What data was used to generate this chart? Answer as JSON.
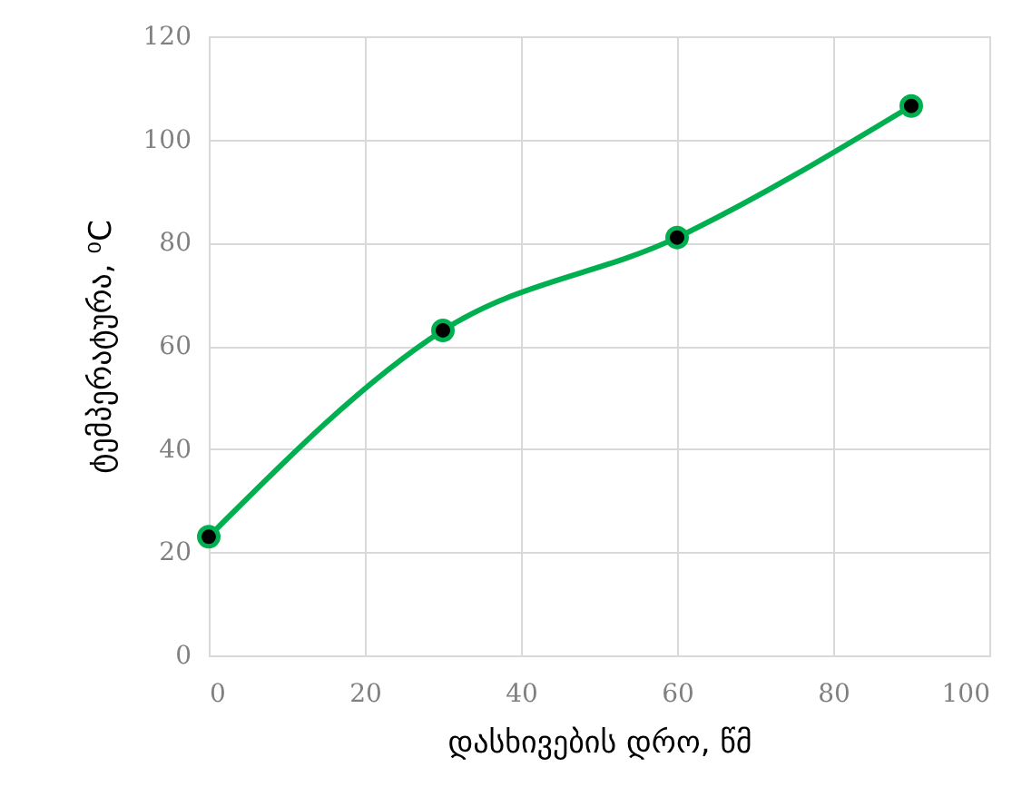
{
  "chart_data": {
    "type": "line",
    "xlabel": "დასხივების დრო,  წმ",
    "ylabel": "ტემპერატურა, ⁰C",
    "x": [
      0,
      30,
      60,
      90
    ],
    "series": [
      {
        "color": "#00b050",
        "values": [
          23,
          63,
          81,
          106.5
        ]
      }
    ],
    "xlim": [
      0,
      100
    ],
    "xticks": [
      0,
      20,
      40,
      60,
      80,
      100
    ],
    "ylim": [
      0,
      120
    ],
    "yticks": [
      0,
      20,
      40,
      60,
      80,
      100,
      120
    ],
    "grid": true,
    "marker": "circle",
    "line_style": "solid"
  }
}
